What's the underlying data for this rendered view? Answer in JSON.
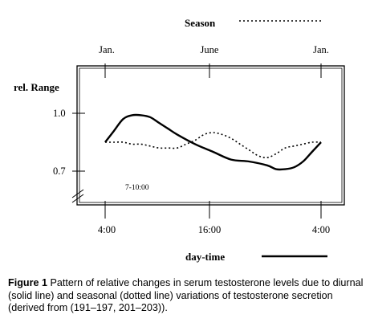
{
  "chart_data": {
    "type": "line",
    "ylabel": "rel. Range",
    "xlabel": "day-time",
    "top_axis_ticks": [
      "Jan.",
      "June",
      "Jan."
    ],
    "bottom_axis_ticks": [
      "4:00",
      "16:00",
      "4:00"
    ],
    "y_ticks": [
      "1.0",
      "0.7"
    ],
    "annotation": "7-10:00",
    "ylim": [
      0.6,
      1.13
    ],
    "grid": false,
    "legend": [
      {
        "label": "Season",
        "style": "dotted",
        "position": "top-right"
      },
      {
        "label": "day-time",
        "style": "solid",
        "position": "bottom-right"
      }
    ],
    "series": [
      {
        "style": "solid",
        "axis": "day-time (hours 4:00 → 4:00 next day)",
        "x": [
          4,
          5,
          6,
          7,
          8,
          9,
          10,
          11,
          12,
          14,
          16,
          18,
          20,
          22,
          23,
          24,
          25,
          26,
          27,
          28
        ],
        "y": [
          0.85,
          0.91,
          0.97,
          0.99,
          0.99,
          0.98,
          0.95,
          0.92,
          0.89,
          0.84,
          0.8,
          0.76,
          0.75,
          0.73,
          0.71,
          0.71,
          0.72,
          0.75,
          0.8,
          0.85
        ]
      },
      {
        "style": "dotted",
        "axis": "season (Jan. → Jan.)",
        "x": [
          0,
          0.5,
          1,
          1.5,
          2,
          2.5,
          3,
          3.5,
          4,
          4.5,
          5,
          5.5,
          6,
          6.5,
          7,
          7.5,
          8,
          8.5,
          9,
          9.5,
          10,
          10.5,
          11,
          11.5,
          12
        ],
        "y": [
          0.85,
          0.85,
          0.85,
          0.84,
          0.84,
          0.83,
          0.82,
          0.82,
          0.82,
          0.84,
          0.86,
          0.89,
          0.9,
          0.89,
          0.87,
          0.84,
          0.81,
          0.78,
          0.77,
          0.79,
          0.82,
          0.83,
          0.84,
          0.85,
          0.85
        ]
      }
    ]
  },
  "caption": {
    "label": "Figure 1",
    "text": "Pattern of relative changes in serum testosterone levels due to diurnal (solid line) and seasonal (dotted line) variations of testosterone secretion (derived from (191–197, 201–203))."
  },
  "colors": {
    "line": "#000000",
    "frame": "#000000",
    "background": "#ffffff"
  }
}
